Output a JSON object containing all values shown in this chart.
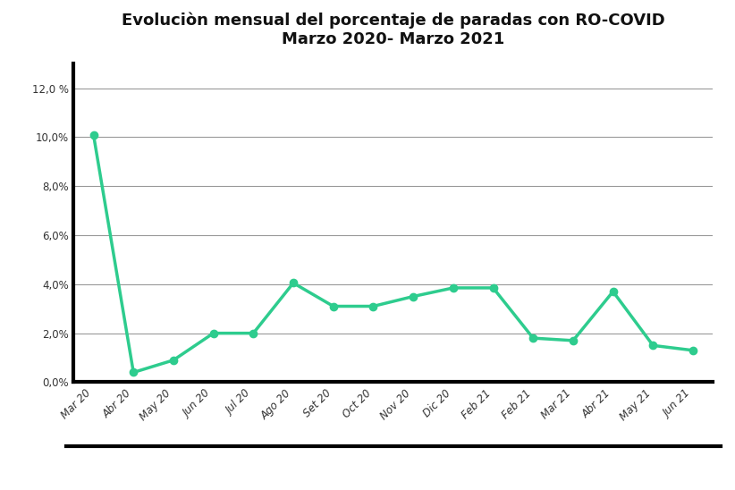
{
  "title_line1": "Evoluciòn mensual del porcentaje de paradas con RO-COVID",
  "title_line2": "Marzo 2020- Marzo 2021",
  "x_labels_display": [
    "Mar 20",
    "Abr 20",
    "May 20",
    "Jun 20",
    "Jul 20",
    "Ago 20",
    "Set 20",
    "Oct 20",
    "Nov 20",
    "Dic 20",
    "Feb 21",
    "Feb 21",
    "Mar 21",
    "Abr 21",
    "May 21",
    "Jun 21"
  ],
  "values": [
    10.1,
    0.4,
    0.9,
    2.0,
    2.0,
    4.05,
    3.1,
    3.1,
    3.5,
    3.85,
    3.85,
    1.8,
    1.7,
    3.7,
    1.5,
    1.3
  ],
  "line_color": "#2ecc8e",
  "marker_color": "#2ecc8e",
  "background_color": "#ffffff",
  "grid_color": "#999999",
  "ytick_labels": [
    "0,0%",
    "2,0%",
    "4,0%",
    "6,0%",
    "8,0%",
    "10,0%",
    "12,0 %"
  ],
  "ytick_values": [
    0,
    2,
    4,
    6,
    8,
    10,
    12
  ],
  "ylim": [
    0,
    13
  ],
  "title_fontsize": 13,
  "tick_fontsize": 8.5,
  "axis_label_color": "#333333",
  "spine_color": "#000000"
}
